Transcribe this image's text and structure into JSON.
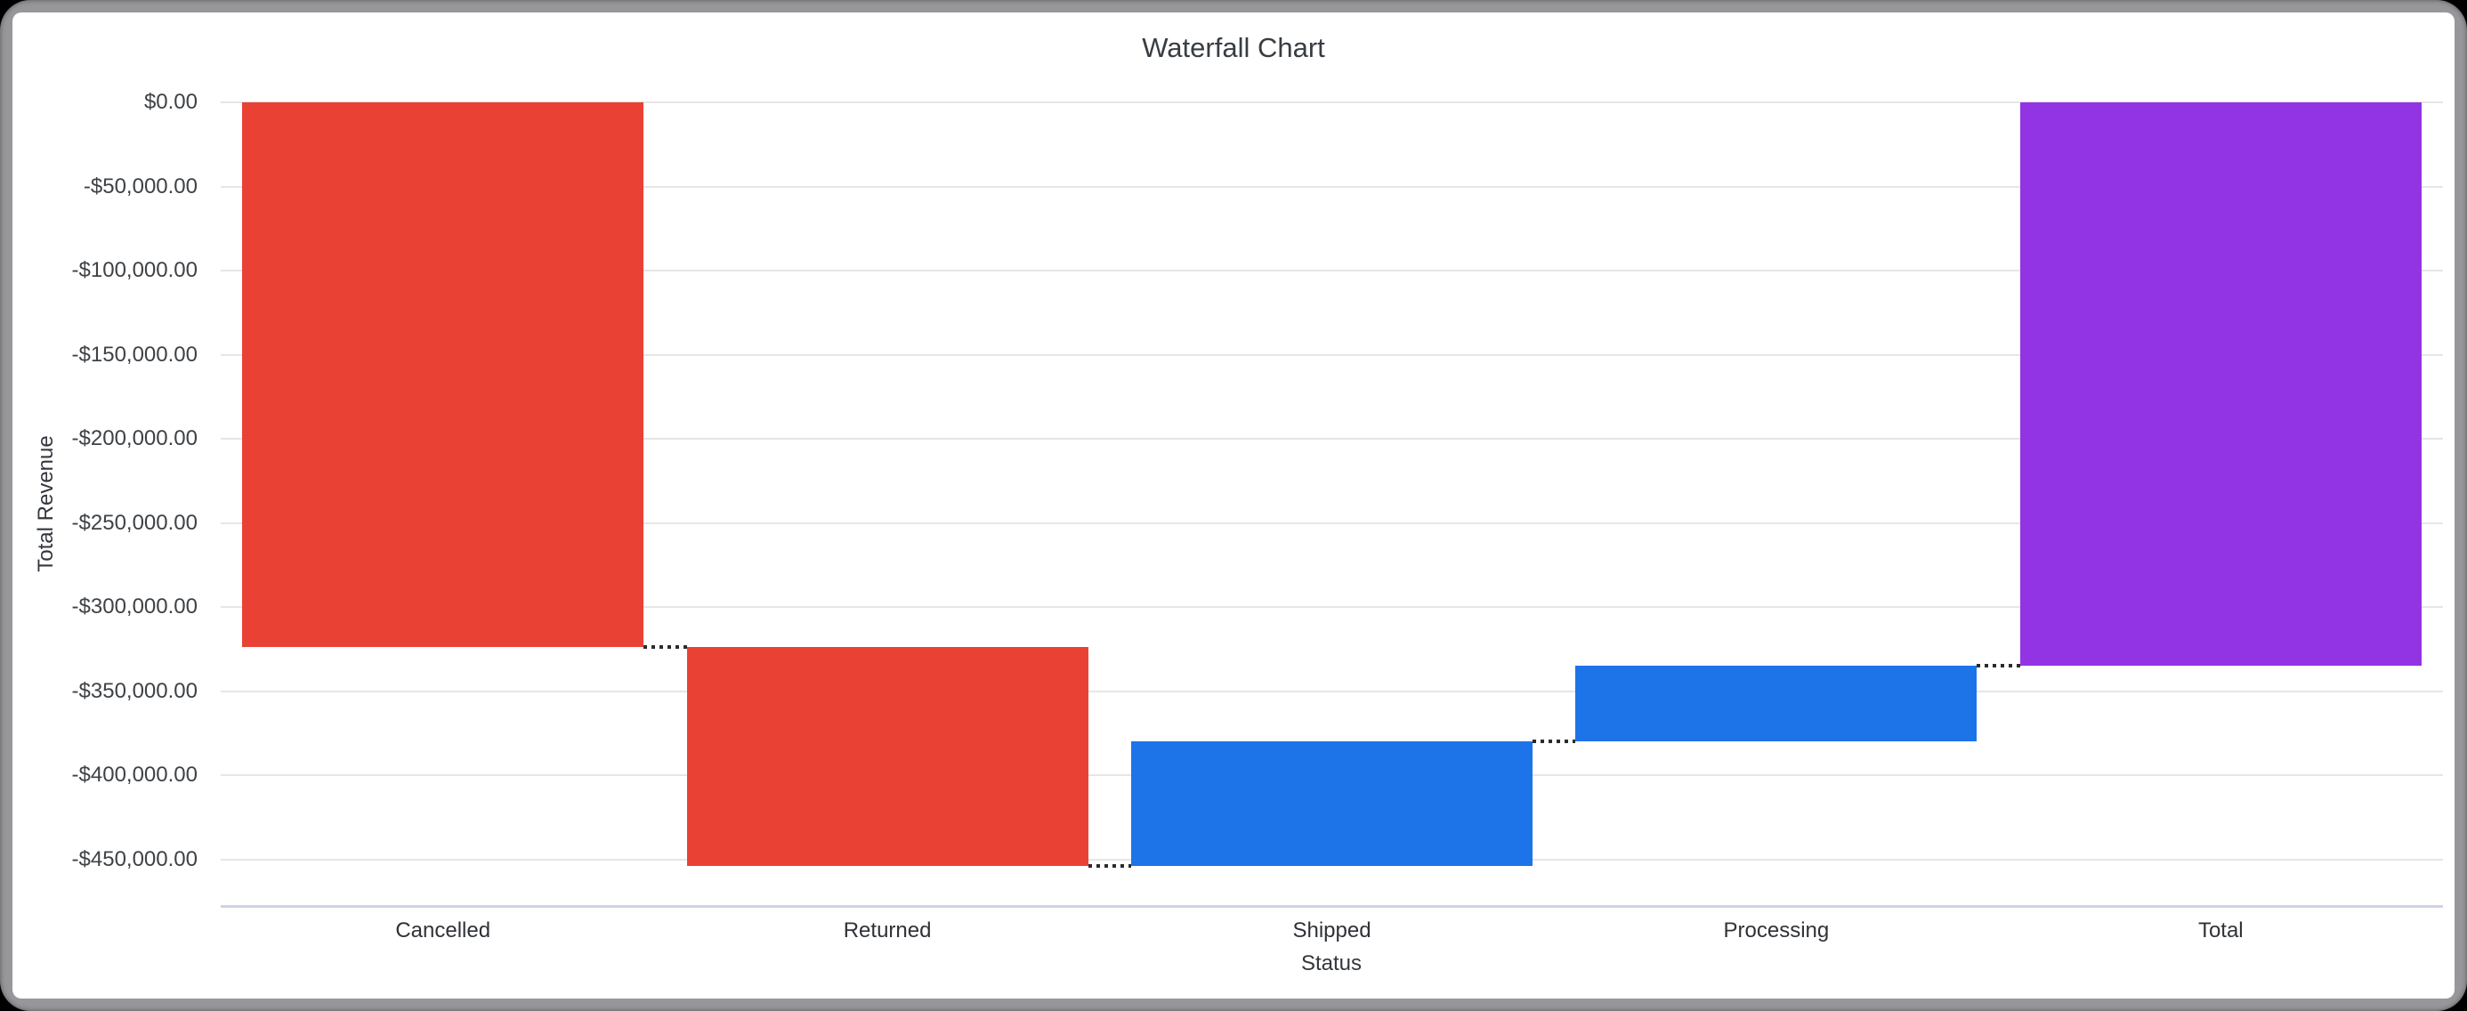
{
  "window": {
    "background_color": "#000000",
    "frame_color": "#97979b",
    "card_color": "#ffffff"
  },
  "chart": {
    "title": "Waterfall Chart",
    "title_color": "#383d42",
    "x_axis": {
      "title": "Status",
      "categories": [
        "Cancelled",
        "Returned",
        "Shipped",
        "Processing",
        "Total"
      ],
      "label_color": "#2f3237",
      "axis_line_color": "#ccd3e6"
    },
    "y_axis": {
      "title": "Total Revenue",
      "tick_labels": [
        "$0.00",
        "-$50,000.00",
        "-$100,000.00",
        "-$150,000.00",
        "-$200,000.00",
        "-$250,000.00",
        "-$300,000.00",
        "-$350,000.00",
        "-$400,000.00",
        "-$450,000.00"
      ],
      "tick_values": [
        0,
        -50000,
        -100000,
        -150000,
        -200000,
        -250000,
        -300000,
        -350000,
        -400000,
        -450000
      ],
      "label_color": "#3e4246",
      "grid_color": "#e6e6e6"
    },
    "connector_color": "#2b2b2b"
  },
  "chart_data": {
    "type": "bar",
    "subtype": "waterfall",
    "title": "Waterfall Chart",
    "xlabel": "Status",
    "ylabel": "Total Revenue",
    "categories": [
      "Cancelled",
      "Returned",
      "Shipped",
      "Processing",
      "Total"
    ],
    "series": [
      {
        "name": "Cancelled",
        "delta": -323900,
        "start": 0,
        "end": -323900,
        "color": "#e94235",
        "kind": "decrease"
      },
      {
        "name": "Returned",
        "delta": -129900,
        "start": -323900,
        "end": -453800,
        "color": "#e94235",
        "kind": "decrease"
      },
      {
        "name": "Shipped",
        "delta": 74100,
        "start": -453800,
        "end": -379700,
        "color": "#1d73e8",
        "kind": "increase"
      },
      {
        "name": "Processing",
        "delta": 44700,
        "start": -379700,
        "end": -335000,
        "color": "#1d73e8",
        "kind": "increase"
      },
      {
        "name": "Total",
        "delta": -335000,
        "start": 0,
        "end": -335000,
        "color": "#9234e3",
        "kind": "total"
      }
    ],
    "ylim": [
      0,
      -477000
    ],
    "grid": "on",
    "legend": "none"
  }
}
